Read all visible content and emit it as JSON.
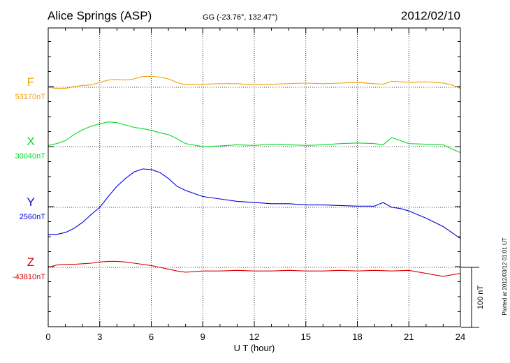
{
  "header": {
    "station": "Alice Springs (ASP)",
    "coords": "GG (-23.76°, 132.47°)",
    "date": "2012/02/10"
  },
  "footer": {
    "plotted": "Plotted at 2012/03/12 01:01  UT"
  },
  "chart_data": {
    "type": "line",
    "xlabel": "U T (hour)",
    "xlim": [
      0,
      24
    ],
    "xticks": [
      0,
      3,
      6,
      9,
      12,
      15,
      18,
      21,
      24
    ],
    "grid": true,
    "scale_bar": "100 nT",
    "series": [
      {
        "name": "F",
        "baseline_label": "53170nT",
        "baseline_nT": 53170,
        "color": "#f0a000",
        "x": [
          0,
          0.5,
          1,
          1.5,
          2,
          2.5,
          3,
          3.5,
          4,
          4.5,
          5,
          5.5,
          6,
          6.5,
          7,
          7.5,
          8,
          9,
          10,
          11,
          12,
          13,
          14,
          15,
          16,
          17,
          18,
          19,
          19.5,
          20,
          21,
          22,
          23,
          23.5,
          24
        ],
        "y": [
          0,
          -2,
          -2,
          1,
          3,
          4,
          8,
          12,
          13,
          12,
          14,
          18,
          18,
          17,
          14,
          8,
          4,
          5,
          6,
          6,
          4,
          5,
          6,
          7,
          6,
          7,
          8,
          6,
          5,
          10,
          8,
          9,
          7,
          4,
          -2
        ]
      },
      {
        "name": "X",
        "baseline_label": "30040nT",
        "baseline_nT": 30040,
        "color": "#00dd22",
        "x": [
          0,
          0.5,
          1,
          1.5,
          2,
          2.5,
          3,
          3.5,
          4,
          4.5,
          5,
          5.5,
          6,
          6.5,
          7,
          7.5,
          8,
          9,
          10,
          11,
          12,
          13,
          14,
          15,
          16,
          17,
          18,
          19,
          19.5,
          20,
          20.5,
          21,
          22,
          23,
          23.5,
          24
        ],
        "y": [
          2,
          5,
          10,
          20,
          28,
          34,
          38,
          41,
          40,
          36,
          32,
          30,
          27,
          23,
          20,
          13,
          5,
          0,
          1,
          3,
          2,
          4,
          3,
          2,
          3,
          5,
          6,
          5,
          3,
          15,
          10,
          5,
          4,
          3,
          -4,
          -10
        ]
      },
      {
        "name": "Y",
        "baseline_label": "2560nT",
        "baseline_nT": 2560,
        "color": "#0000dd",
        "x": [
          0,
          0.5,
          1,
          1.5,
          2,
          2.5,
          3,
          3.5,
          4,
          4.5,
          5,
          5.5,
          6,
          6.5,
          7,
          7.5,
          8,
          9,
          10,
          11,
          12,
          13,
          14,
          15,
          16,
          17,
          18,
          19,
          19.5,
          20,
          20.5,
          21,
          22,
          23,
          23.5,
          24
        ],
        "y": [
          -45,
          -45,
          -42,
          -35,
          -25,
          -12,
          0,
          18,
          35,
          48,
          59,
          64,
          63,
          58,
          48,
          35,
          28,
          18,
          14,
          10,
          8,
          6,
          6,
          4,
          4,
          3,
          2,
          2,
          8,
          0,
          -2,
          -6,
          -18,
          -32,
          -42,
          -52
        ]
      },
      {
        "name": "Z",
        "baseline_label": "-43810nT",
        "baseline_nT": -43810,
        "color": "#dd0000",
        "x": [
          0,
          0.5,
          1,
          1.5,
          2,
          2.5,
          3,
          3.5,
          4,
          4.5,
          5,
          5.5,
          6,
          6.5,
          7,
          7.5,
          8,
          9,
          10,
          11,
          12,
          13,
          14,
          15,
          16,
          17,
          18,
          19,
          20,
          21,
          22,
          23,
          24
        ],
        "y": [
          0,
          4,
          5,
          5,
          6,
          7,
          9,
          10,
          10,
          9,
          7,
          5,
          3,
          0,
          -3,
          -6,
          -8,
          -6,
          -6,
          -5,
          -6,
          -6,
          -5,
          -6,
          -6,
          -5,
          -6,
          -5,
          -6,
          -5,
          -10,
          -15,
          -10
        ]
      }
    ]
  }
}
